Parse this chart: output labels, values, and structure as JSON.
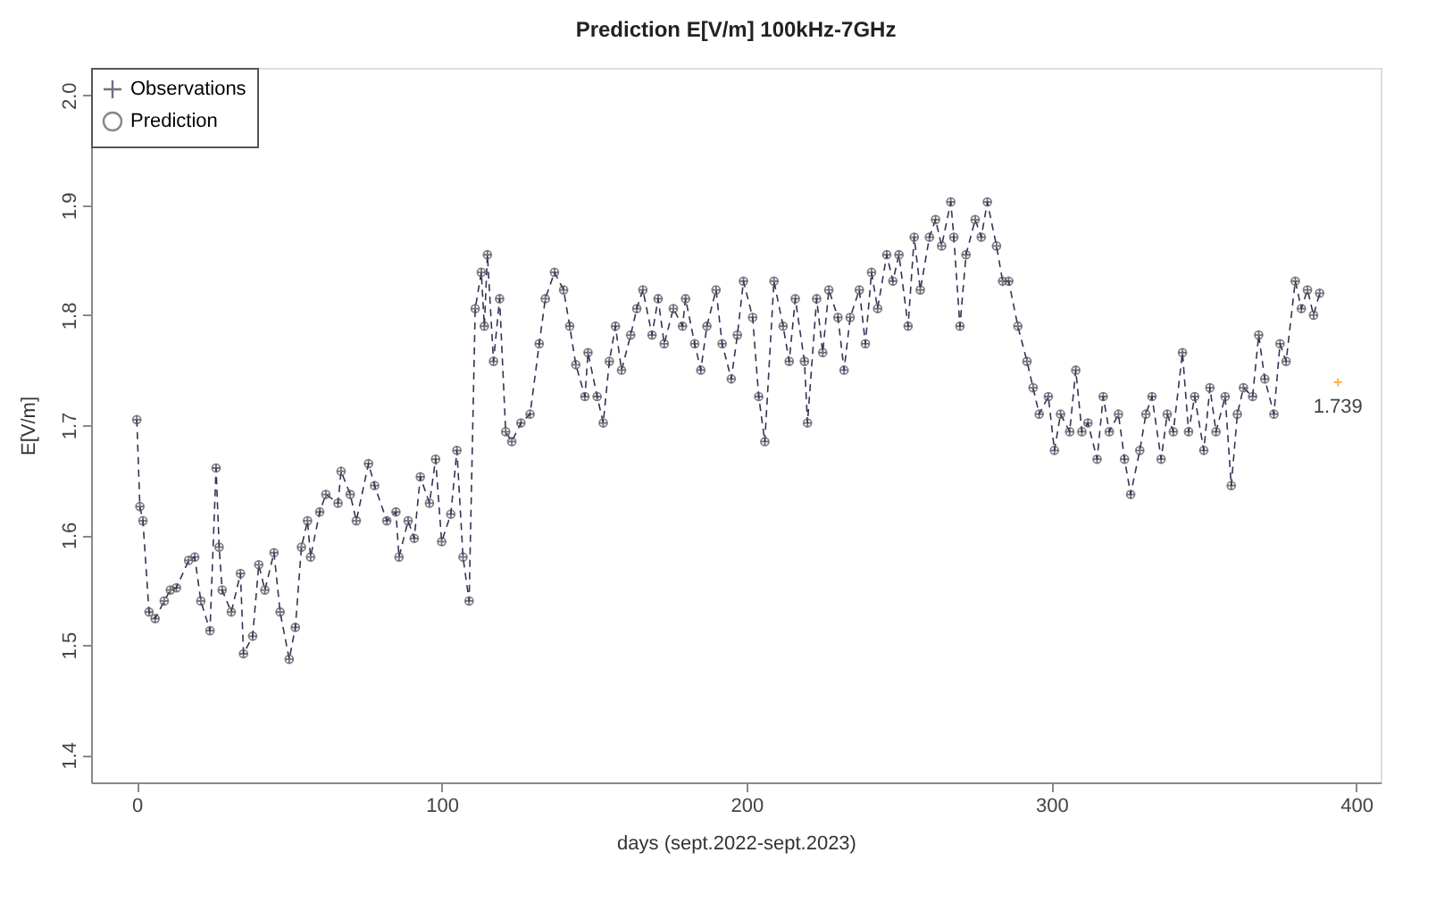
{
  "chart_data": {
    "type": "line",
    "title": "Prediction E[V/m] 100kHz-7GHz",
    "xlabel": "days (sept.2022-sept.2023)",
    "ylabel": "E[V/m]",
    "x": [
      0,
      1,
      2,
      4,
      6,
      9,
      11,
      13,
      17,
      19,
      21,
      24,
      26,
      27,
      28,
      31,
      34,
      35,
      38,
      40,
      42,
      45,
      47,
      50,
      52,
      54,
      56,
      57,
      60,
      62,
      66,
      67,
      70,
      72,
      76,
      78,
      82,
      85,
      86,
      89,
      91,
      93,
      96,
      98,
      100,
      103,
      105,
      107,
      109,
      111,
      113,
      114,
      115,
      117,
      119,
      121,
      123,
      126,
      129,
      132,
      134,
      137,
      140,
      142,
      144,
      147,
      148,
      151,
      153,
      155,
      157,
      159,
      162,
      164,
      166,
      169,
      171,
      173,
      176,
      179,
      180,
      183,
      185,
      187,
      190,
      192,
      195,
      197,
      199,
      202,
      204,
      206,
      209,
      212,
      214,
      216,
      219,
      220,
      223,
      225,
      227,
      230,
      232,
      234,
      237,
      239,
      241,
      243,
      246,
      248,
      250,
      253,
      255,
      257,
      260,
      262,
      264,
      267,
      268,
      270,
      272,
      275,
      277,
      279,
      282,
      284,
      286,
      289,
      292,
      294,
      296,
      299,
      301,
      303,
      306,
      308,
      310,
      312,
      315,
      317,
      319,
      322,
      324,
      326,
      329,
      331,
      333,
      336,
      338,
      340,
      343,
      345,
      347,
      350,
      352,
      354,
      357,
      359,
      361,
      363,
      366,
      368,
      370,
      373,
      375,
      377,
      380,
      382,
      384,
      386,
      388
    ],
    "series": [
      {
        "name": "Observations",
        "type": "line",
        "marker": "cross",
        "line_style": "dashed",
        "color": "#333355",
        "values": [
          1.705,
          1.626,
          1.613,
          1.53,
          1.524,
          1.54,
          1.55,
          1.552,
          1.577,
          1.58,
          1.54,
          1.513,
          1.661,
          1.589,
          1.55,
          1.53,
          1.565,
          1.492,
          1.508,
          1.573,
          1.55,
          1.584,
          1.53,
          1.487,
          1.516,
          1.589,
          1.613,
          1.58,
          1.621,
          1.637,
          1.629,
          1.658,
          1.637,
          1.613,
          1.665,
          1.645,
          1.613,
          1.621,
          1.58,
          1.613,
          1.597,
          1.653,
          1.629,
          1.669,
          1.594,
          1.619,
          1.677,
          1.58,
          1.54,
          1.806,
          1.839,
          1.79,
          1.855,
          1.758,
          1.815,
          1.694,
          1.685,
          1.702,
          1.71,
          1.774,
          1.815,
          1.839,
          1.823,
          1.79,
          1.755,
          1.726,
          1.766,
          1.726,
          1.702,
          1.758,
          1.79,
          1.75,
          1.782,
          1.806,
          1.823,
          1.782,
          1.815,
          1.774,
          1.806,
          1.79,
          1.815,
          1.774,
          1.75,
          1.79,
          1.823,
          1.774,
          1.742,
          1.782,
          1.831,
          1.798,
          1.726,
          1.685,
          1.831,
          1.79,
          1.758,
          1.815,
          1.758,
          1.702,
          1.815,
          1.766,
          1.823,
          1.798,
          1.75,
          1.798,
          1.823,
          1.774,
          1.839,
          1.806,
          1.855,
          1.831,
          1.855,
          1.79,
          1.871,
          1.823,
          1.871,
          1.887,
          1.863,
          1.903,
          1.871,
          1.79,
          1.855,
          1.887,
          1.871,
          1.903,
          1.863,
          1.831,
          1.831,
          1.79,
          1.758,
          1.734,
          1.71,
          1.726,
          1.677,
          1.71,
          1.694,
          1.75,
          1.694,
          1.702,
          1.669,
          1.726,
          1.694,
          1.71,
          1.669,
          1.637,
          1.677,
          1.71,
          1.726,
          1.669,
          1.71,
          1.694,
          1.766,
          1.694,
          1.726,
          1.677,
          1.734,
          1.694,
          1.726,
          1.645,
          1.71,
          1.734,
          1.726,
          1.782,
          1.742,
          1.71,
          1.774,
          1.758,
          1.831,
          1.806,
          1.823,
          1.8,
          1.82
        ]
      },
      {
        "name": "Prediction",
        "type": "scatter",
        "marker": "circle",
        "color": "#555555",
        "values": [
          1.705,
          1.626,
          1.613,
          1.53,
          1.524,
          1.54,
          1.55,
          1.552,
          1.577,
          1.58,
          1.54,
          1.513,
          1.661,
          1.589,
          1.55,
          1.53,
          1.565,
          1.492,
          1.508,
          1.573,
          1.55,
          1.584,
          1.53,
          1.487,
          1.516,
          1.589,
          1.613,
          1.58,
          1.621,
          1.637,
          1.629,
          1.658,
          1.637,
          1.613,
          1.665,
          1.645,
          1.613,
          1.621,
          1.58,
          1.613,
          1.597,
          1.653,
          1.629,
          1.669,
          1.594,
          1.619,
          1.677,
          1.58,
          1.54,
          1.806,
          1.839,
          1.79,
          1.855,
          1.758,
          1.815,
          1.694,
          1.685,
          1.702,
          1.71,
          1.774,
          1.815,
          1.839,
          1.823,
          1.79,
          1.755,
          1.726,
          1.766,
          1.726,
          1.702,
          1.758,
          1.79,
          1.75,
          1.782,
          1.806,
          1.823,
          1.782,
          1.815,
          1.774,
          1.806,
          1.79,
          1.815,
          1.774,
          1.75,
          1.79,
          1.823,
          1.774,
          1.742,
          1.782,
          1.831,
          1.798,
          1.726,
          1.685,
          1.831,
          1.79,
          1.758,
          1.815,
          1.758,
          1.702,
          1.815,
          1.766,
          1.823,
          1.798,
          1.75,
          1.798,
          1.823,
          1.774,
          1.839,
          1.806,
          1.855,
          1.831,
          1.855,
          1.79,
          1.871,
          1.823,
          1.871,
          1.887,
          1.863,
          1.903,
          1.871,
          1.79,
          1.855,
          1.887,
          1.871,
          1.903,
          1.863,
          1.831,
          1.831,
          1.79,
          1.758,
          1.734,
          1.71,
          1.726,
          1.677,
          1.71,
          1.694,
          1.75,
          1.694,
          1.702,
          1.669,
          1.726,
          1.694,
          1.71,
          1.669,
          1.637,
          1.677,
          1.71,
          1.726,
          1.669,
          1.71,
          1.694,
          1.766,
          1.694,
          1.726,
          1.677,
          1.734,
          1.694,
          1.726,
          1.645,
          1.71,
          1.734,
          1.726,
          1.782,
          1.742,
          1.71,
          1.774,
          1.758,
          1.831,
          1.806,
          1.823,
          1.8,
          1.82
        ]
      },
      {
        "type": "scatter",
        "marker": "cross",
        "color": "#ff8c00",
        "x": [
          394
        ],
        "values": [
          1.739
        ]
      }
    ],
    "annotations": [
      {
        "text": "1.739",
        "x": 394,
        "y": 1.739
      }
    ],
    "xlim": [
      -15,
      408
    ],
    "xticks": [
      0,
      100,
      200,
      300,
      400
    ],
    "ylim": [
      1.375,
      2.025
    ],
    "yticks": [
      1.4,
      1.5,
      1.6,
      1.7,
      1.8,
      1.9,
      {
        "value": 2,
        "label": "2.0"
      }
    ],
    "grid": false,
    "legend": "top left"
  }
}
